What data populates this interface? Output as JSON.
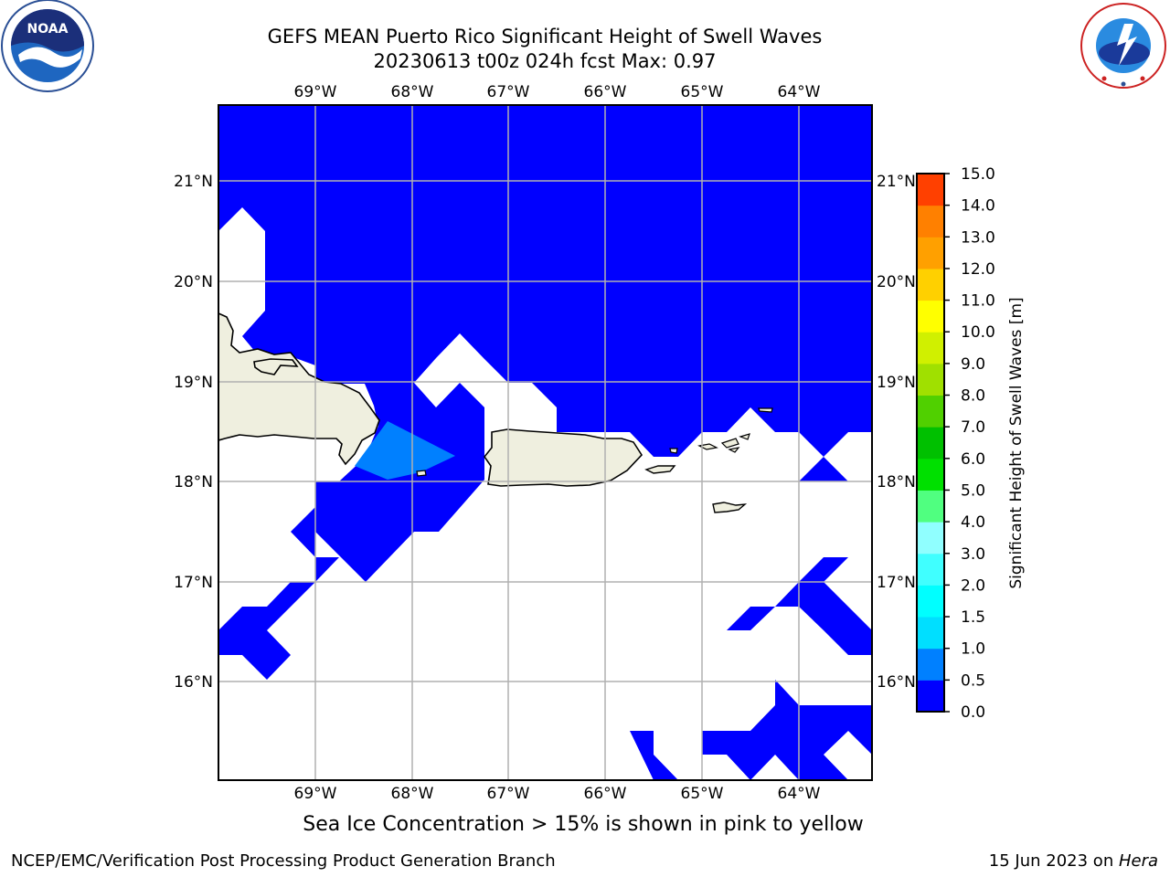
{
  "title": {
    "line1": "GEFS MEAN Puerto Rico Significant Height of Swell Waves",
    "line2": "20230613 t00z 024h fcst   Max: 0.97"
  },
  "logos": {
    "noaa_text": "NOAA",
    "noaa_ring": "NATIONAL OCEANIC AND ATMOSPHERIC ADMINISTRATION · U.S. DEPARTMENT OF COMMERCE",
    "nws_ring": "NATIONAL WEATHER SERVICE"
  },
  "map": {
    "lon_labels": [
      "69°W",
      "68°W",
      "67°W",
      "66°W",
      "65°W",
      "64°W"
    ],
    "lat_labels": [
      "21°N",
      "20°N",
      "19°N",
      "18°N",
      "17°N",
      "16°N"
    ],
    "colors": {
      "ocean_low": "#0000ff",
      "ocean_mid": "#0080ff",
      "land": "#efefdf",
      "grid": "#b0b0b0"
    }
  },
  "colorbar": {
    "label": "Significant Height of Swell Waves [m]",
    "ticks": [
      "0.0",
      "0.5",
      "1.0",
      "1.5",
      "2.0",
      "3.0",
      "4.0",
      "5.0",
      "6.0",
      "7.0",
      "8.0",
      "9.0",
      "10.0",
      "11.0",
      "12.0",
      "13.0",
      "14.0",
      "15.0"
    ],
    "colors": [
      "#0000ff",
      "#0080ff",
      "#00dfff",
      "#00ffff",
      "#40ffff",
      "#90ffff",
      "#50ff80",
      "#00e000",
      "#00c000",
      "#50d000",
      "#a0e000",
      "#d0f000",
      "#ffff00",
      "#ffd000",
      "#ffa000",
      "#ff8000",
      "#ff4000",
      "#ff0000"
    ]
  },
  "note": "Sea Ice Concentration > 15% is shown in pink to yellow",
  "footer": {
    "left": "NCEP/EMC/Verification Post Processing Product Generation Branch",
    "right_prefix": "15 Jun 2023 on ",
    "right_host": "Hera"
  }
}
